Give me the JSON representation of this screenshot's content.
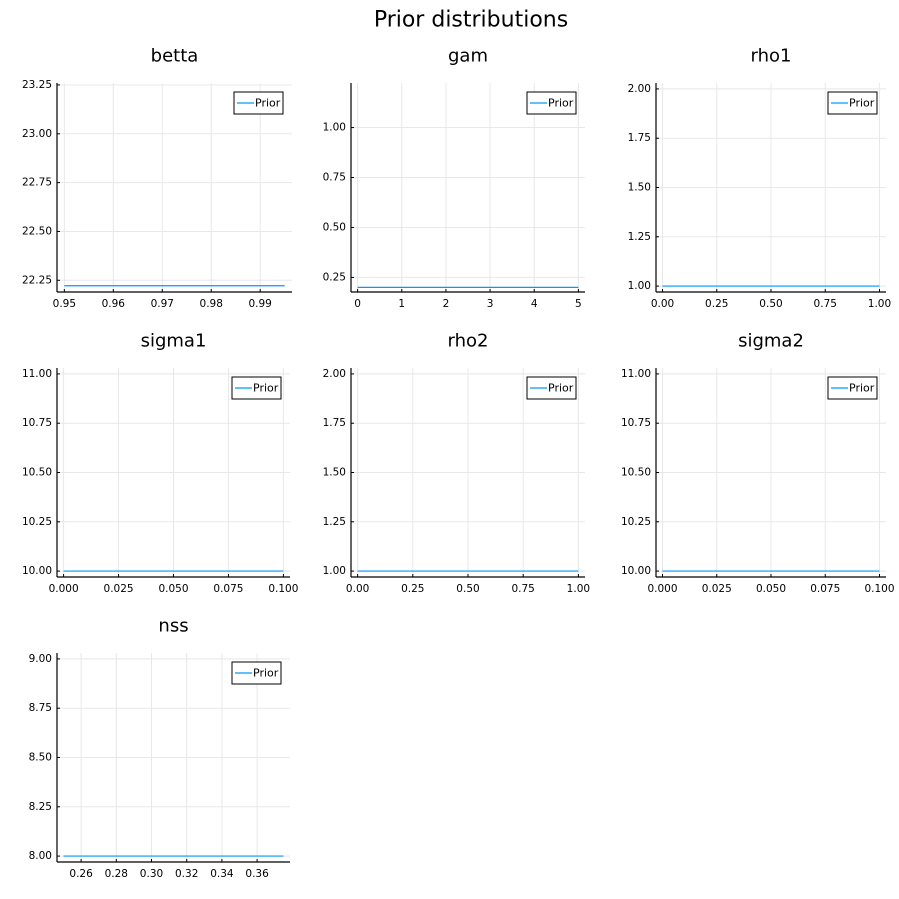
{
  "figure": {
    "title": "Prior distributions"
  },
  "chart_data": [
    {
      "type": "line",
      "title": "betta",
      "series": [
        {
          "name": "Prior",
          "x": [
            0.95,
            0.995
          ],
          "y": [
            22.222,
            22.222
          ]
        }
      ],
      "xlim": [
        0.9485,
        0.9965
      ],
      "ylim": [
        22.19,
        23.26
      ],
      "xticks": [
        0.95,
        0.96,
        0.97,
        0.98,
        0.99
      ],
      "xtick_labels": [
        "0.95",
        "0.96",
        "0.97",
        "0.98",
        "0.99"
      ],
      "yticks": [
        22.25,
        22.5,
        22.75,
        23.0,
        23.25
      ],
      "ytick_labels": [
        "22.25",
        "22.50",
        "22.75",
        "23.00",
        "23.25"
      ],
      "grid": true,
      "legend": "top-right",
      "color": "#009af9"
    },
    {
      "type": "line",
      "title": "gam",
      "series": [
        {
          "name": "Prior",
          "x": [
            0,
            5
          ],
          "y": [
            0.2,
            0.2
          ]
        }
      ],
      "xlim": [
        -0.15,
        5.15
      ],
      "ylim": [
        0.177,
        1.223
      ],
      "xticks": [
        0,
        1,
        2,
        3,
        4,
        5
      ],
      "xtick_labels": [
        "0",
        "1",
        "2",
        "3",
        "4",
        "5"
      ],
      "yticks": [
        0.25,
        0.5,
        0.75,
        1.0
      ],
      "ytick_labels": [
        "0.25",
        "0.50",
        "0.75",
        "1.00"
      ],
      "grid": true,
      "legend": "top-right",
      "color": "#009af9"
    },
    {
      "type": "line",
      "title": "rho1",
      "series": [
        {
          "name": "Prior",
          "x": [
            0,
            1
          ],
          "y": [
            1.0,
            1.0
          ]
        }
      ],
      "xlim": [
        -0.03,
        1.03
      ],
      "ylim": [
        0.97,
        2.03
      ],
      "xticks": [
        0,
        0.25,
        0.5,
        0.75,
        1.0
      ],
      "xtick_labels": [
        "0.00",
        "0.25",
        "0.50",
        "0.75",
        "1.00"
      ],
      "yticks": [
        1.0,
        1.25,
        1.5,
        1.75,
        2.0
      ],
      "ytick_labels": [
        "1.00",
        "1.25",
        "1.50",
        "1.75",
        "2.00"
      ],
      "grid": true,
      "legend": "top-right",
      "color": "#009af9"
    },
    {
      "type": "line",
      "title": "sigma1",
      "series": [
        {
          "name": "Prior",
          "x": [
            0,
            0.1
          ],
          "y": [
            10.0,
            10.0
          ]
        }
      ],
      "xlim": [
        -0.003,
        0.103
      ],
      "ylim": [
        9.97,
        11.03
      ],
      "xticks": [
        0,
        0.025,
        0.05,
        0.075,
        0.1
      ],
      "xtick_labels": [
        "0.000",
        "0.025",
        "0.050",
        "0.075",
        "0.100"
      ],
      "yticks": [
        10.0,
        10.25,
        10.5,
        10.75,
        11.0
      ],
      "ytick_labels": [
        "10.00",
        "10.25",
        "10.50",
        "10.75",
        "11.00"
      ],
      "grid": true,
      "legend": "top-right",
      "color": "#009af9"
    },
    {
      "type": "line",
      "title": "rho2",
      "series": [
        {
          "name": "Prior",
          "x": [
            0,
            1
          ],
          "y": [
            1.0,
            1.0
          ]
        }
      ],
      "xlim": [
        -0.03,
        1.03
      ],
      "ylim": [
        0.97,
        2.03
      ],
      "xticks": [
        0,
        0.25,
        0.5,
        0.75,
        1.0
      ],
      "xtick_labels": [
        "0.00",
        "0.25",
        "0.50",
        "0.75",
        "1.00"
      ],
      "yticks": [
        1.0,
        1.25,
        1.5,
        1.75,
        2.0
      ],
      "ytick_labels": [
        "1.00",
        "1.25",
        "1.50",
        "1.75",
        "2.00"
      ],
      "grid": true,
      "legend": "top-right",
      "color": "#009af9"
    },
    {
      "type": "line",
      "title": "sigma2",
      "series": [
        {
          "name": "Prior",
          "x": [
            0,
            0.1
          ],
          "y": [
            10.0,
            10.0
          ]
        }
      ],
      "xlim": [
        -0.003,
        0.103
      ],
      "ylim": [
        9.97,
        11.03
      ],
      "xticks": [
        0,
        0.025,
        0.05,
        0.075,
        0.1
      ],
      "xtick_labels": [
        "0.000",
        "0.025",
        "0.050",
        "0.075",
        "0.100"
      ],
      "yticks": [
        10.0,
        10.25,
        10.5,
        10.75,
        11.0
      ],
      "ytick_labels": [
        "10.00",
        "10.25",
        "10.50",
        "10.75",
        "11.00"
      ],
      "grid": true,
      "legend": "top-right",
      "color": "#009af9"
    },
    {
      "type": "line",
      "title": "nss",
      "series": [
        {
          "name": "Prior",
          "x": [
            0.25,
            0.375
          ],
          "y": [
            8.0,
            8.0
          ]
        }
      ],
      "xlim": [
        0.2463,
        0.3787
      ],
      "ylim": [
        7.97,
        9.03
      ],
      "xticks": [
        0.26,
        0.28,
        0.3,
        0.32,
        0.34,
        0.36
      ],
      "xtick_labels": [
        "0.26",
        "0.28",
        "0.30",
        "0.32",
        "0.34",
        "0.36"
      ],
      "yticks": [
        8.0,
        8.25,
        8.5,
        8.75,
        9.0
      ],
      "ytick_labels": [
        "8.00",
        "8.25",
        "8.50",
        "8.75",
        "9.00"
      ],
      "grid": true,
      "legend": "top-right",
      "color": "#009af9"
    }
  ]
}
